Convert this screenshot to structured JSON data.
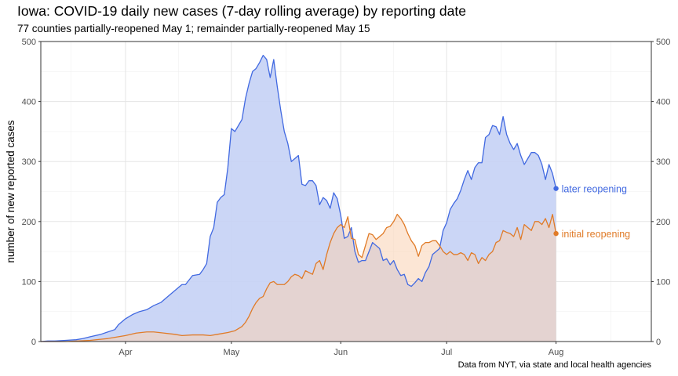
{
  "chart_data": {
    "type": "area",
    "title": "Iowa: COVID-19 daily new cases (7-day rolling average) by reporting date",
    "subtitle": "77 counties partially-reopened May 1; remainder partially-reopened May 15",
    "ylabel": "number of new reported cases",
    "xlabel": "",
    "caption": "Data from NYT, via state and local health agencies",
    "ylim": [
      0,
      500
    ],
    "y_ticks": [
      0,
      100,
      200,
      300,
      400,
      500
    ],
    "xlim": [
      "2020-03-08",
      "2020-08-28"
    ],
    "x_ticks": [
      {
        "date": "2020-04-01",
        "label": "Apr"
      },
      {
        "date": "2020-05-01",
        "label": "May"
      },
      {
        "date": "2020-06-01",
        "label": "Jun"
      },
      {
        "date": "2020-07-01",
        "label": "Jul"
      },
      {
        "date": "2020-08-01",
        "label": "Aug"
      }
    ],
    "grid": true,
    "secondary_y_axis": true,
    "series": [
      {
        "name": "later reopening",
        "color": "#4169e1",
        "fill": "#c5d1f5",
        "points": [
          [
            "2020-03-08",
            0
          ],
          [
            "2020-03-10",
            1
          ],
          [
            "2020-03-12",
            1
          ],
          [
            "2020-03-15",
            2
          ],
          [
            "2020-03-18",
            3
          ],
          [
            "2020-03-20",
            5
          ],
          [
            "2020-03-22",
            8
          ],
          [
            "2020-03-25",
            12
          ],
          [
            "2020-03-27",
            16
          ],
          [
            "2020-03-29",
            20
          ],
          [
            "2020-03-30",
            28
          ],
          [
            "2020-04-01",
            38
          ],
          [
            "2020-04-03",
            45
          ],
          [
            "2020-04-05",
            50
          ],
          [
            "2020-04-07",
            53
          ],
          [
            "2020-04-09",
            60
          ],
          [
            "2020-04-11",
            65
          ],
          [
            "2020-04-13",
            75
          ],
          [
            "2020-04-15",
            85
          ],
          [
            "2020-04-17",
            95
          ],
          [
            "2020-04-18",
            95
          ],
          [
            "2020-04-20",
            110
          ],
          [
            "2020-04-22",
            112
          ],
          [
            "2020-04-23",
            120
          ],
          [
            "2020-04-24",
            130
          ],
          [
            "2020-04-25",
            175
          ],
          [
            "2020-04-26",
            190
          ],
          [
            "2020-04-27",
            232
          ],
          [
            "2020-04-28",
            240
          ],
          [
            "2020-04-29",
            245
          ],
          [
            "2020-04-30",
            290
          ],
          [
            "2020-05-01",
            355
          ],
          [
            "2020-05-02",
            350
          ],
          [
            "2020-05-03",
            360
          ],
          [
            "2020-05-04",
            370
          ],
          [
            "2020-05-05",
            405
          ],
          [
            "2020-05-06",
            430
          ],
          [
            "2020-05-07",
            450
          ],
          [
            "2020-05-08",
            455
          ],
          [
            "2020-05-09",
            465
          ],
          [
            "2020-05-10",
            477
          ],
          [
            "2020-05-11",
            470
          ],
          [
            "2020-05-12",
            440
          ],
          [
            "2020-05-13",
            470
          ],
          [
            "2020-05-14",
            425
          ],
          [
            "2020-05-15",
            385
          ],
          [
            "2020-05-16",
            350
          ],
          [
            "2020-05-17",
            330
          ],
          [
            "2020-05-18",
            300
          ],
          [
            "2020-05-19",
            305
          ],
          [
            "2020-05-20",
            310
          ],
          [
            "2020-05-21",
            262
          ],
          [
            "2020-05-22",
            260
          ],
          [
            "2020-05-23",
            268
          ],
          [
            "2020-05-24",
            268
          ],
          [
            "2020-05-25",
            260
          ],
          [
            "2020-05-26",
            228
          ],
          [
            "2020-05-27",
            240
          ],
          [
            "2020-05-28",
            235
          ],
          [
            "2020-05-29",
            222
          ],
          [
            "2020-05-30",
            248
          ],
          [
            "2020-05-31",
            238
          ],
          [
            "2020-06-01",
            210
          ],
          [
            "2020-06-02",
            172
          ],
          [
            "2020-06-03",
            175
          ],
          [
            "2020-06-04",
            190
          ],
          [
            "2020-06-05",
            150
          ],
          [
            "2020-06-06",
            132
          ],
          [
            "2020-06-07",
            135
          ],
          [
            "2020-06-08",
            135
          ],
          [
            "2020-06-09",
            150
          ],
          [
            "2020-06-10",
            165
          ],
          [
            "2020-06-11",
            160
          ],
          [
            "2020-06-12",
            155
          ],
          [
            "2020-06-13",
            135
          ],
          [
            "2020-06-14",
            138
          ],
          [
            "2020-06-15",
            128
          ],
          [
            "2020-06-16",
            135
          ],
          [
            "2020-06-17",
            120
          ],
          [
            "2020-06-18",
            110
          ],
          [
            "2020-06-19",
            112
          ],
          [
            "2020-06-20",
            95
          ],
          [
            "2020-06-21",
            92
          ],
          [
            "2020-06-22",
            98
          ],
          [
            "2020-06-23",
            105
          ],
          [
            "2020-06-24",
            100
          ],
          [
            "2020-06-25",
            115
          ],
          [
            "2020-06-26",
            125
          ],
          [
            "2020-06-27",
            145
          ],
          [
            "2020-06-28",
            150
          ],
          [
            "2020-06-29",
            155
          ],
          [
            "2020-06-30",
            185
          ],
          [
            "2020-07-01",
            198
          ],
          [
            "2020-07-02",
            220
          ],
          [
            "2020-07-03",
            230
          ],
          [
            "2020-07-04",
            238
          ],
          [
            "2020-07-05",
            252
          ],
          [
            "2020-07-06",
            270
          ],
          [
            "2020-07-07",
            285
          ],
          [
            "2020-07-08",
            270
          ],
          [
            "2020-07-09",
            290
          ],
          [
            "2020-07-10",
            298
          ],
          [
            "2020-07-11",
            298
          ],
          [
            "2020-07-12",
            340
          ],
          [
            "2020-07-13",
            345
          ],
          [
            "2020-07-14",
            360
          ],
          [
            "2020-07-15",
            358
          ],
          [
            "2020-07-16",
            345
          ],
          [
            "2020-07-17",
            375
          ],
          [
            "2020-07-18",
            345
          ],
          [
            "2020-07-19",
            330
          ],
          [
            "2020-07-20",
            320
          ],
          [
            "2020-07-21",
            330
          ],
          [
            "2020-07-22",
            310
          ],
          [
            "2020-07-23",
            295
          ],
          [
            "2020-07-24",
            305
          ],
          [
            "2020-07-25",
            315
          ],
          [
            "2020-07-26",
            315
          ],
          [
            "2020-07-27",
            310
          ],
          [
            "2020-07-28",
            295
          ],
          [
            "2020-07-29",
            270
          ],
          [
            "2020-07-30",
            295
          ],
          [
            "2020-07-31",
            280
          ],
          [
            "2020-08-01",
            255
          ]
        ]
      },
      {
        "name": "initial reopening",
        "color": "#e07b28",
        "fill": "#f9d2b3",
        "points": [
          [
            "2020-03-08",
            0
          ],
          [
            "2020-03-15",
            0
          ],
          [
            "2020-03-22",
            2
          ],
          [
            "2020-03-27",
            5
          ],
          [
            "2020-03-30",
            8
          ],
          [
            "2020-04-01",
            10
          ],
          [
            "2020-04-04",
            14
          ],
          [
            "2020-04-07",
            16
          ],
          [
            "2020-04-09",
            16
          ],
          [
            "2020-04-12",
            14
          ],
          [
            "2020-04-15",
            12
          ],
          [
            "2020-04-17",
            10
          ],
          [
            "2020-04-20",
            11
          ],
          [
            "2020-04-23",
            11
          ],
          [
            "2020-04-25",
            10
          ],
          [
            "2020-04-27",
            12
          ],
          [
            "2020-04-30",
            15
          ],
          [
            "2020-05-02",
            18
          ],
          [
            "2020-05-04",
            25
          ],
          [
            "2020-05-05",
            32
          ],
          [
            "2020-05-06",
            42
          ],
          [
            "2020-05-07",
            55
          ],
          [
            "2020-05-08",
            65
          ],
          [
            "2020-05-09",
            72
          ],
          [
            "2020-05-10",
            75
          ],
          [
            "2020-05-11",
            88
          ],
          [
            "2020-05-12",
            98
          ],
          [
            "2020-05-13",
            100
          ],
          [
            "2020-05-14",
            95
          ],
          [
            "2020-05-15",
            95
          ],
          [
            "2020-05-16",
            95
          ],
          [
            "2020-05-17",
            100
          ],
          [
            "2020-05-18",
            108
          ],
          [
            "2020-05-19",
            112
          ],
          [
            "2020-05-20",
            110
          ],
          [
            "2020-05-21",
            105
          ],
          [
            "2020-05-22",
            118
          ],
          [
            "2020-05-23",
            115
          ],
          [
            "2020-05-24",
            112
          ],
          [
            "2020-05-25",
            130
          ],
          [
            "2020-05-26",
            135
          ],
          [
            "2020-05-27",
            120
          ],
          [
            "2020-05-28",
            145
          ],
          [
            "2020-05-29",
            165
          ],
          [
            "2020-05-30",
            180
          ],
          [
            "2020-05-31",
            190
          ],
          [
            "2020-06-01",
            195
          ],
          [
            "2020-06-02",
            190
          ],
          [
            "2020-06-03",
            208
          ],
          [
            "2020-06-04",
            172
          ],
          [
            "2020-06-05",
            170
          ],
          [
            "2020-06-06",
            145
          ],
          [
            "2020-06-07",
            140
          ],
          [
            "2020-06-08",
            160
          ],
          [
            "2020-06-09",
            180
          ],
          [
            "2020-06-10",
            178
          ],
          [
            "2020-06-11",
            170
          ],
          [
            "2020-06-12",
            175
          ],
          [
            "2020-06-13",
            180
          ],
          [
            "2020-06-14",
            190
          ],
          [
            "2020-06-15",
            192
          ],
          [
            "2020-06-16",
            200
          ],
          [
            "2020-06-17",
            212
          ],
          [
            "2020-06-18",
            205
          ],
          [
            "2020-06-19",
            195
          ],
          [
            "2020-06-20",
            180
          ],
          [
            "2020-06-21",
            168
          ],
          [
            "2020-06-22",
            160
          ],
          [
            "2020-06-23",
            142
          ],
          [
            "2020-06-24",
            160
          ],
          [
            "2020-06-25",
            165
          ],
          [
            "2020-06-26",
            165
          ],
          [
            "2020-06-27",
            168
          ],
          [
            "2020-06-28",
            168
          ],
          [
            "2020-06-29",
            160
          ],
          [
            "2020-06-30",
            150
          ],
          [
            "2020-07-01",
            145
          ],
          [
            "2020-07-02",
            150
          ],
          [
            "2020-07-03",
            145
          ],
          [
            "2020-07-04",
            145
          ],
          [
            "2020-07-05",
            148
          ],
          [
            "2020-07-06",
            145
          ],
          [
            "2020-07-07",
            135
          ],
          [
            "2020-07-08",
            148
          ],
          [
            "2020-07-09",
            145
          ],
          [
            "2020-07-10",
            130
          ],
          [
            "2020-07-11",
            140
          ],
          [
            "2020-07-12",
            135
          ],
          [
            "2020-07-13",
            145
          ],
          [
            "2020-07-14",
            150
          ],
          [
            "2020-07-15",
            165
          ],
          [
            "2020-07-16",
            168
          ],
          [
            "2020-07-17",
            185
          ],
          [
            "2020-07-18",
            182
          ],
          [
            "2020-07-19",
            180
          ],
          [
            "2020-07-20",
            175
          ],
          [
            "2020-07-21",
            190
          ],
          [
            "2020-07-22",
            170
          ],
          [
            "2020-07-23",
            195
          ],
          [
            "2020-07-24",
            190
          ],
          [
            "2020-07-25",
            185
          ],
          [
            "2020-07-26",
            200
          ],
          [
            "2020-07-27",
            200
          ],
          [
            "2020-07-28",
            195
          ],
          [
            "2020-07-29",
            205
          ],
          [
            "2020-07-30",
            190
          ],
          [
            "2020-07-31",
            212
          ],
          [
            "2020-08-01",
            180
          ]
        ]
      }
    ]
  }
}
